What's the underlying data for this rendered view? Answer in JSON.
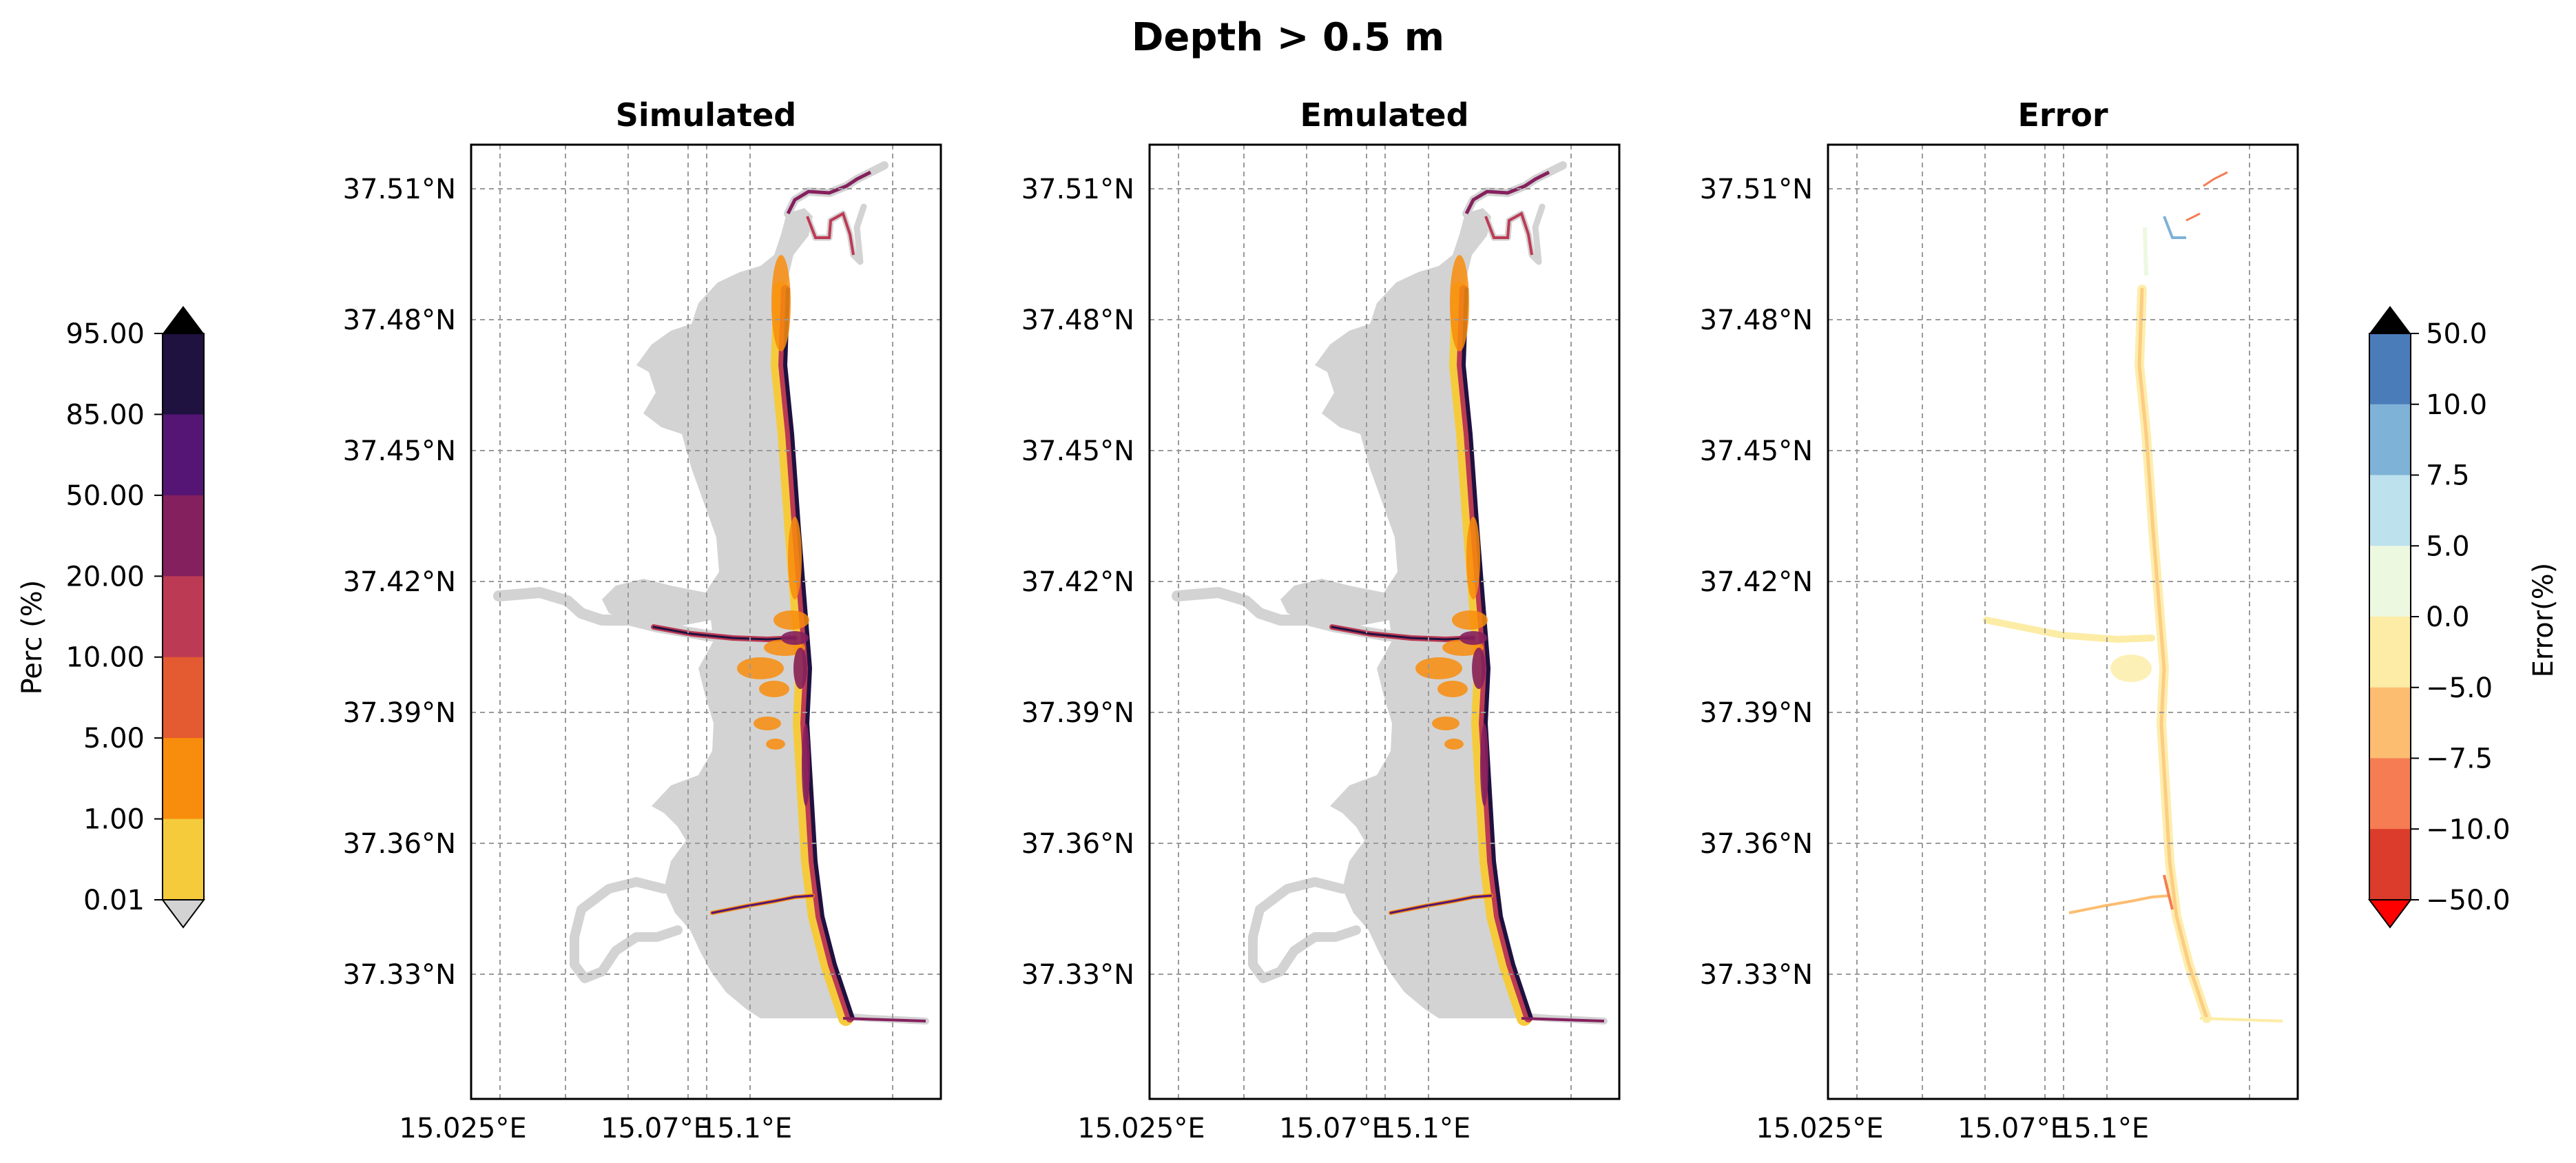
{
  "figure": {
    "title": "Depth > 0.5 m"
  },
  "panels": [
    {
      "id": "simulated",
      "title": "Simulated",
      "kind": "perc"
    },
    {
      "id": "emulated",
      "title": "Emulated",
      "kind": "perc"
    },
    {
      "id": "error",
      "title": "Error",
      "kind": "error"
    }
  ],
  "axes": {
    "lat_ticks": [
      "37.51°N",
      "37.48°N",
      "37.45°N",
      "37.42°N",
      "37.39°N",
      "37.36°N",
      "37.33°N"
    ],
    "lon_ticks": [
      "15.025°E",
      "15.07°E",
      "15.1°E"
    ]
  },
  "colorbars": {
    "perc": {
      "label": "Perc (%)",
      "ticks": [
        "95.00",
        "85.00",
        "50.00",
        "20.00",
        "10.00",
        "5.00",
        "1.00",
        "0.01"
      ],
      "colors": [
        "#1f1140",
        "#541574",
        "#85205e",
        "#bc3a54",
        "#e45a31",
        "#f88c0c",
        "#f5cb3c"
      ],
      "under_color": "#d3d3d3",
      "over_color": "#000000"
    },
    "error": {
      "label": "Error(%)",
      "ticks": [
        "50.0",
        "10.0",
        "7.5",
        "5.0",
        "0.0",
        "−5.0",
        "−7.5",
        "−10.0",
        "−50.0"
      ],
      "colors": [
        "#4a7cba",
        "#7fb2d7",
        "#bde1ed",
        "#edf8e0",
        "#fdeca5",
        "#fcbd71",
        "#f57c53",
        "#dc3c2b"
      ],
      "under_color": "#ff0000",
      "over_color": "#000000"
    }
  }
}
